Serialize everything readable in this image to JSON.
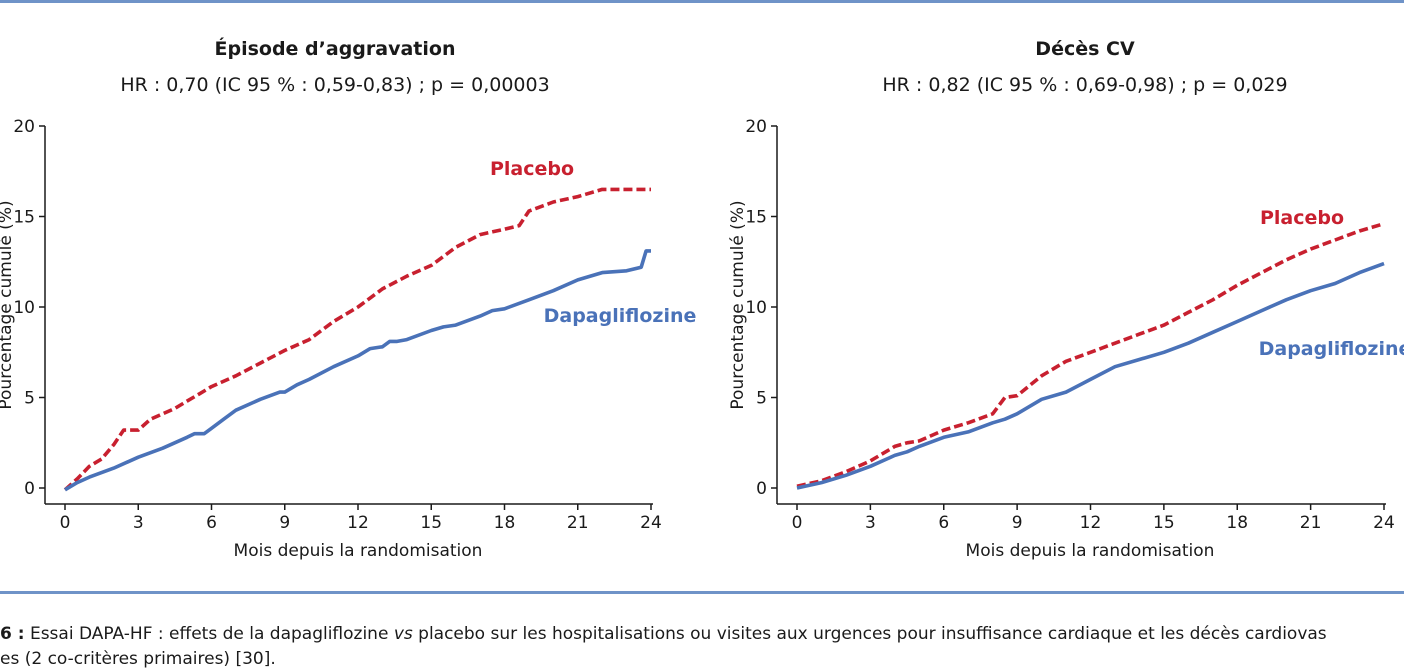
{
  "colors": {
    "placebo": "#c8202f",
    "dapagliflozine": "#4a72b8",
    "rule": "#6f93c8"
  },
  "caption": {
    "label": "6 :",
    "line1_a": " Essai DAPA-HF : effets de la dapagliflozine ",
    "line1_em": "vs",
    "line1_b": " placebo sur les hospitalisations ou visites aux urgences pour insuffisance cardiaque et les décès cardiovas",
    "line2": "es (2 co-critères primaires) [30]."
  },
  "chart_data": [
    {
      "type": "line",
      "title": "Épisode d’aggravation",
      "subtitle": "HR : 0,70 (IC 95 % : 0,59-0,83) ; p = 0,00003",
      "xlabel": "Mois depuis la randomisation",
      "ylabel": "Pourcentage cumulé (%)",
      "xlim": [
        0,
        24
      ],
      "ylim": [
        0,
        20
      ],
      "xticks": [
        0,
        3,
        6,
        9,
        12,
        15,
        18,
        21,
        24
      ],
      "yticks": [
        0,
        5,
        10,
        15,
        20
      ],
      "series": [
        {
          "name": "Placebo",
          "style": "dashed",
          "x": [
            0,
            0.5,
            1,
            1.5,
            2,
            2.4,
            3,
            3.5,
            4,
            4.5,
            5,
            5.5,
            6,
            7,
            8,
            9,
            9.5,
            10,
            11,
            12,
            13,
            14,
            15,
            16,
            17,
            18,
            18.6,
            19,
            20,
            21,
            22,
            23,
            24
          ],
          "y": [
            -0.1,
            0.5,
            1.2,
            1.6,
            2.4,
            3.2,
            3.2,
            3.8,
            4.1,
            4.4,
            4.8,
            5.2,
            5.6,
            6.2,
            6.9,
            7.6,
            7.9,
            8.2,
            9.2,
            10,
            11,
            11.7,
            12.3,
            13.3,
            14,
            14.3,
            14.5,
            15.3,
            15.8,
            16.1,
            16.5,
            16.5,
            16.5
          ]
        },
        {
          "name": "Dapagliflozine",
          "style": "solid",
          "x": [
            0,
            0.5,
            1,
            2,
            3,
            4,
            5,
            5.3,
            5.7,
            6,
            6.5,
            7,
            8,
            8.8,
            9,
            9.5,
            10,
            11,
            12,
            12.5,
            13,
            13.3,
            13.6,
            14,
            15,
            15.5,
            16,
            17,
            17.5,
            18,
            19,
            20,
            21,
            22,
            23,
            23.6,
            23.8,
            24
          ],
          "y": [
            -0.1,
            0.3,
            0.6,
            1.1,
            1.7,
            2.2,
            2.8,
            3.0,
            3.0,
            3.3,
            3.8,
            4.3,
            4.9,
            5.3,
            5.3,
            5.7,
            6.0,
            6.7,
            7.3,
            7.7,
            7.8,
            8.1,
            8.1,
            8.2,
            8.7,
            8.9,
            9.0,
            9.5,
            9.8,
            9.9,
            10.4,
            10.9,
            11.5,
            11.9,
            12.0,
            12.2,
            13.1,
            13.1
          ]
        }
      ]
    },
    {
      "type": "line",
      "title": "Décès CV",
      "subtitle": "HR : 0,82 (IC 95 % : 0,69-0,98) ; p = 0,029",
      "xlabel": "Mois depuis la randomisation",
      "ylabel": "Pourcentage cumulé (%)",
      "xlim": [
        0,
        24
      ],
      "ylim": [
        0,
        20
      ],
      "xticks": [
        0,
        3,
        6,
        9,
        12,
        15,
        18,
        21,
        24
      ],
      "yticks": [
        0,
        5,
        10,
        15,
        20
      ],
      "series": [
        {
          "name": "Placebo",
          "style": "dashed",
          "x": [
            0,
            1,
            2,
            3,
            4,
            4.5,
            5,
            6,
            7,
            8,
            8.5,
            9,
            10,
            11,
            12,
            13,
            14,
            15,
            16,
            17,
            18,
            19,
            20,
            21,
            22,
            23,
            24
          ],
          "y": [
            0.1,
            0.4,
            0.9,
            1.5,
            2.3,
            2.5,
            2.6,
            3.2,
            3.6,
            4.1,
            5.0,
            5.1,
            6.2,
            7.0,
            7.5,
            8.0,
            8.5,
            9.0,
            9.7,
            10.4,
            11.2,
            11.9,
            12.6,
            13.2,
            13.7,
            14.2,
            14.6
          ]
        },
        {
          "name": "Dapagliflozine",
          "style": "solid",
          "x": [
            0,
            1,
            2,
            3,
            4,
            4.5,
            5,
            6,
            7,
            8,
            8.5,
            9,
            10,
            11,
            12,
            13,
            14,
            15,
            16,
            17,
            18,
            19,
            20,
            21,
            22,
            23,
            24
          ],
          "y": [
            0.0,
            0.3,
            0.7,
            1.2,
            1.8,
            2.0,
            2.3,
            2.8,
            3.1,
            3.6,
            3.8,
            4.1,
            4.9,
            5.3,
            6.0,
            6.7,
            7.1,
            7.5,
            8.0,
            8.6,
            9.2,
            9.8,
            10.4,
            10.9,
            11.3,
            11.9,
            12.4
          ]
        }
      ]
    }
  ]
}
